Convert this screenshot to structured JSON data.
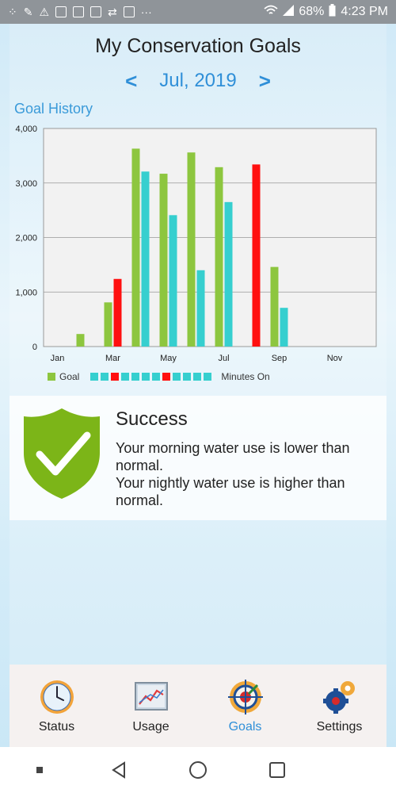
{
  "status_bar": {
    "battery": "68%",
    "time": "4:23 PM",
    "more": "···"
  },
  "header": {
    "title": "My Conservation Goals",
    "prev_arrow": "<",
    "month": "Jul, 2019",
    "next_arrow": ">"
  },
  "section": {
    "label": "Goal History"
  },
  "chart_data": {
    "type": "bar",
    "title": "",
    "xlabel": "",
    "ylabel": "",
    "ylim": [
      0,
      4000
    ],
    "yticks": [
      "0",
      "1,000",
      "2,000",
      "3,000",
      "4,000"
    ],
    "categories": [
      "Jan",
      "Feb",
      "Mar",
      "Apr",
      "May",
      "Jun",
      "Jul",
      "Aug",
      "Sep",
      "Oct",
      "Nov",
      "Dec"
    ],
    "xtick_labels": [
      "Jan",
      "",
      "Mar",
      "",
      "May",
      "",
      "Jul",
      "",
      "Sep",
      "",
      "Nov",
      ""
    ],
    "series": [
      {
        "name": "Goal",
        "values": [
          0,
          230,
          810,
          3630,
          3170,
          3560,
          3290,
          0,
          1460,
          0,
          0,
          0
        ]
      },
      {
        "name": "Minutes On",
        "values": [
          0,
          0,
          1240,
          3210,
          2410,
          1400,
          2650,
          3340,
          710,
          0,
          0,
          0
        ]
      }
    ],
    "minutes_on_colors": [
      "#36cfcf",
      "#36cfcf",
      "#ff1010",
      "#36cfcf",
      "#36cfcf",
      "#36cfcf",
      "#36cfcf",
      "#ff1010",
      "#36cfcf",
      "#36cfcf",
      "#36cfcf",
      "#36cfcf"
    ],
    "colors": {
      "goal": "#8dc63f",
      "minutes_on": "#36cfcf",
      "over": "#ff1010"
    },
    "grid": true,
    "legend": "bottom-left"
  },
  "result": {
    "title": "Success",
    "messages": [
      "Your morning water use is lower than normal.",
      "Your nightly water use is higher than normal."
    ]
  },
  "tabs": [
    {
      "label": "Status",
      "icon": "clock-icon"
    },
    {
      "label": "Usage",
      "icon": "chart-icon"
    },
    {
      "label": "Goals",
      "icon": "target-icon"
    },
    {
      "label": "Settings",
      "icon": "gears-icon"
    }
  ],
  "colors": {
    "accent": "#2f8fd8",
    "success": "#7cb518"
  }
}
